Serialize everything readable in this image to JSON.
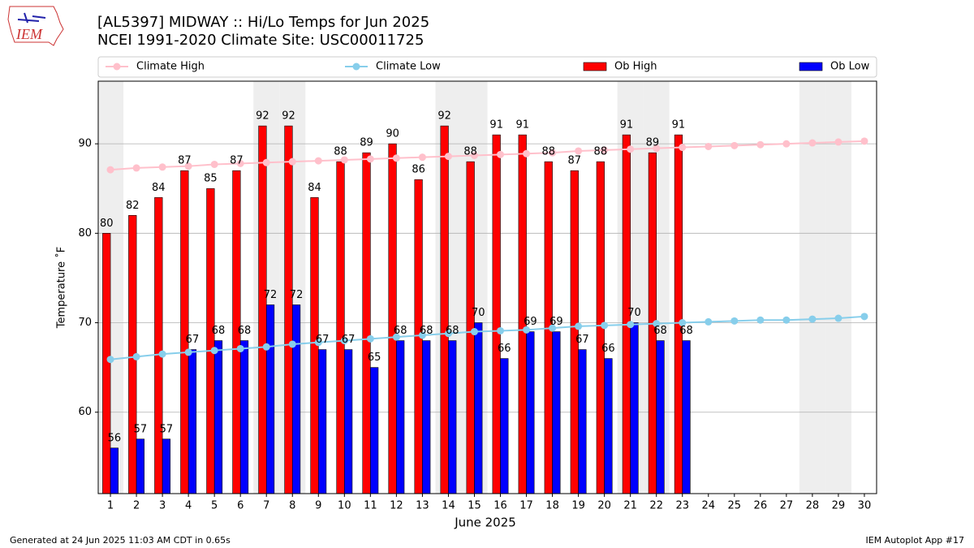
{
  "logo": "IEM",
  "footer": {
    "left": "Generated at 24 Jun 2025 11:03 AM CDT in 0.65s",
    "right": "IEM Autoplot App #17"
  },
  "chart_data": {
    "type": "bar",
    "title": "[AL5397] MIDWAY :: Hi/Lo Temps for Jun 2025",
    "subtitle": "NCEI 1991-2020 Climate Site: USC00011725",
    "xlabel": "June 2025",
    "ylabel": "Temperature ˚F",
    "x": [
      1,
      2,
      3,
      4,
      5,
      6,
      7,
      8,
      9,
      10,
      11,
      12,
      13,
      14,
      15,
      16,
      17,
      18,
      19,
      20,
      21,
      22,
      23,
      24,
      25,
      26,
      27,
      28,
      29,
      30
    ],
    "xlim": [
      0.53,
      30.47
    ],
    "xticks": [
      1,
      2,
      3,
      4,
      5,
      6,
      7,
      8,
      9,
      10,
      11,
      12,
      13,
      14,
      15,
      16,
      17,
      18,
      19,
      20,
      21,
      22,
      23,
      24,
      25,
      26,
      27,
      28,
      29,
      30
    ],
    "ylim": [
      50.9,
      97
    ],
    "yticks": [
      60,
      70,
      80,
      90
    ],
    "grid": true,
    "shaded_days": [
      1,
      7,
      8,
      14,
      15,
      21,
      22,
      28,
      29
    ],
    "series": [
      {
        "name": "Climate High",
        "type": "line",
        "color": "#ffc0cb",
        "values": [
          87.1,
          87.3,
          87.4,
          87.5,
          87.7,
          87.8,
          87.9,
          88.0,
          88.1,
          88.2,
          88.3,
          88.4,
          88.5,
          88.6,
          88.7,
          88.8,
          88.9,
          89.0,
          89.2,
          89.3,
          89.4,
          89.5,
          89.6,
          89.7,
          89.8,
          89.9,
          90.0,
          90.1,
          90.2,
          90.3
        ]
      },
      {
        "name": "Climate Low",
        "type": "line",
        "color": "#87ceeb",
        "values": [
          65.9,
          66.2,
          66.5,
          66.7,
          66.9,
          67.1,
          67.3,
          67.6,
          67.8,
          68.0,
          68.2,
          68.4,
          68.6,
          68.8,
          69.0,
          69.1,
          69.2,
          69.4,
          69.6,
          69.7,
          69.8,
          69.9,
          70.0,
          70.1,
          70.2,
          70.3,
          70.3,
          70.4,
          70.5,
          70.7
        ]
      },
      {
        "name": "Ob High",
        "type": "bar",
        "color": "#ff0000",
        "values": [
          80,
          82,
          84,
          87,
          85,
          87,
          92,
          92,
          84,
          88,
          89,
          90,
          86,
          92,
          88,
          91,
          91,
          88,
          87,
          88,
          91,
          89,
          91,
          null,
          null,
          null,
          null,
          null,
          null,
          null
        ]
      },
      {
        "name": "Ob Low",
        "type": "bar",
        "color": "#0000ff",
        "values": [
          56,
          57,
          57,
          67,
          68,
          68,
          72,
          72,
          67,
          67,
          65,
          68,
          68,
          68,
          70,
          66,
          69,
          69,
          67,
          66,
          70,
          68,
          68,
          null,
          null,
          null,
          null,
          null,
          null,
          null
        ]
      }
    ]
  }
}
